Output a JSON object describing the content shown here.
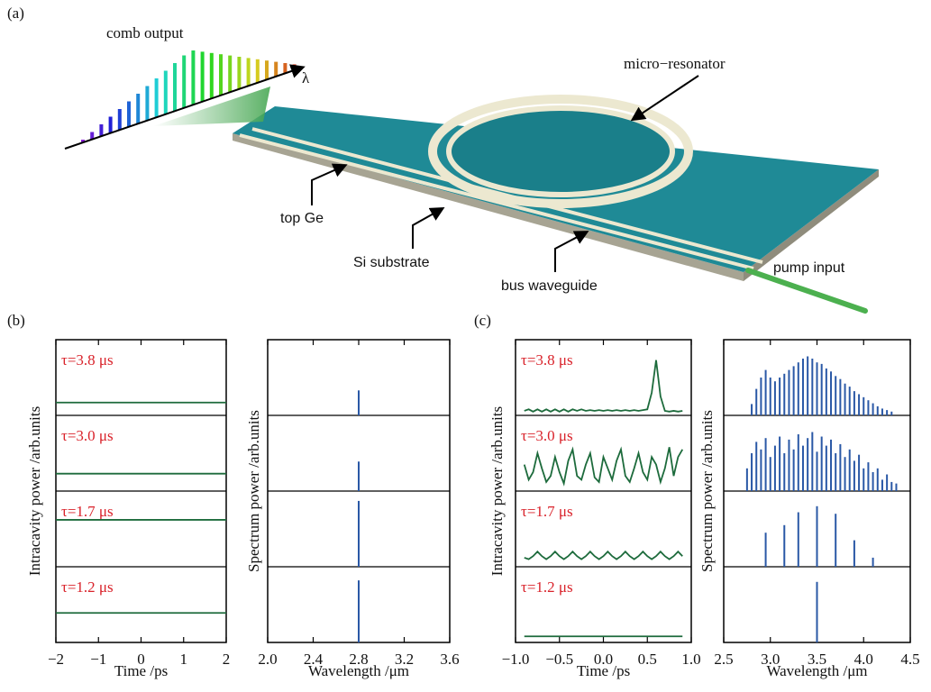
{
  "diagram": {
    "label": "(a)",
    "comb_output": "comb output",
    "lambda": "λ",
    "micro_resonator": "micro−resonator",
    "top_ge": "top Ge",
    "si_substrate": "Si substrate",
    "bus_waveguide": "bus waveguide",
    "pump_input": "pump input"
  },
  "chart_data": [
    {
      "type": "line",
      "label": "(b)",
      "xlabel": "Time /ps",
      "ylabel": "Intracavity power /arb.units",
      "color": "#1d6b3c",
      "xlim": [
        -2,
        2
      ],
      "xticks": [
        {
          "value": -2,
          "label": "−2"
        },
        {
          "value": -1,
          "label": "−1"
        },
        0,
        1,
        2
      ],
      "ylim": [
        0,
        1
      ],
      "x": [
        -2,
        2
      ],
      "panels": [
        {
          "annotation": "τ=3.8 μs",
          "values": [
            0.17,
            0.17
          ]
        },
        {
          "annotation": "τ=3.0 μs",
          "values": [
            0.23,
            0.23
          ]
        },
        {
          "annotation": "τ=1.7 μs",
          "values": [
            0.62,
            0.62
          ]
        },
        {
          "annotation": "τ=1.2 μs",
          "values": [
            0.39,
            0.39
          ]
        }
      ]
    },
    {
      "type": "stem",
      "xlabel": "Wavelength /μm",
      "ylabel": "Spectrum power /arb.units",
      "color": "#2a58a6",
      "xlim": [
        2.0,
        3.6
      ],
      "xticks": [
        {
          "value": 2,
          "label": "2.0"
        },
        2.4,
        2.8,
        3.2,
        3.6
      ],
      "ylim": [
        0,
        1
      ],
      "panels": [
        {
          "x": [
            2.8
          ],
          "values": [
            0.33
          ]
        },
        {
          "x": [
            2.8
          ],
          "values": [
            0.39
          ]
        },
        {
          "x": [
            2.8
          ],
          "values": [
            0.87
          ]
        },
        {
          "x": [
            2.8
          ],
          "values": [
            0.82
          ]
        }
      ]
    },
    {
      "type": "line",
      "label": "(c)",
      "xlabel": "Time /ps",
      "ylabel": "Intracavity power /arb.units",
      "color": "#1d6b3c",
      "xlim": [
        -1,
        1
      ],
      "xticks": [
        {
          "value": -1,
          "label": "−1.0"
        },
        {
          "value": -0.5,
          "label": "−0.5"
        },
        {
          "value": 0,
          "label": "0.0"
        },
        0.5,
        {
          "value": 1,
          "label": "1.0"
        }
      ],
      "ylim": [
        0,
        1
      ],
      "x": [
        -0.9,
        -0.85,
        -0.8,
        -0.75,
        -0.7,
        -0.65,
        -0.6,
        -0.55,
        -0.5,
        -0.45,
        -0.4,
        -0.35,
        -0.3,
        -0.25,
        -0.2,
        -0.15,
        -0.1,
        -0.05,
        0,
        0.05,
        0.1,
        0.15,
        0.2,
        0.25,
        0.3,
        0.35,
        0.4,
        0.45,
        0.5,
        0.55,
        0.6,
        0.65,
        0.7,
        0.75,
        0.8,
        0.85,
        0.9
      ],
      "panels": [
        {
          "annotation": "τ=3.8 μs",
          "values": [
            0.06,
            0.08,
            0.05,
            0.08,
            0.05,
            0.08,
            0.05,
            0.08,
            0.05,
            0.08,
            0.05,
            0.08,
            0.06,
            0.08,
            0.06,
            0.07,
            0.06,
            0.07,
            0.06,
            0.07,
            0.06,
            0.07,
            0.06,
            0.07,
            0.06,
            0.07,
            0.06,
            0.07,
            0.08,
            0.3,
            0.73,
            0.25,
            0.06,
            0.05,
            0.06,
            0.05,
            0.06
          ]
        },
        {
          "annotation": "τ=3.0 μs",
          "values": [
            0.35,
            0.15,
            0.25,
            0.5,
            0.3,
            0.12,
            0.2,
            0.45,
            0.25,
            0.1,
            0.4,
            0.55,
            0.2,
            0.15,
            0.35,
            0.5,
            0.18,
            0.12,
            0.45,
            0.3,
            0.15,
            0.4,
            0.55,
            0.2,
            0.12,
            0.3,
            0.5,
            0.25,
            0.15,
            0.45,
            0.35,
            0.12,
            0.3,
            0.58,
            0.2,
            0.45,
            0.55
          ]
        },
        {
          "annotation": "τ=1.7 μs",
          "values": [
            0.12,
            0.1,
            0.14,
            0.2,
            0.14,
            0.1,
            0.14,
            0.2,
            0.14,
            0.1,
            0.14,
            0.2,
            0.14,
            0.1,
            0.14,
            0.2,
            0.14,
            0.1,
            0.14,
            0.2,
            0.14,
            0.1,
            0.14,
            0.2,
            0.14,
            0.1,
            0.14,
            0.2,
            0.14,
            0.1,
            0.14,
            0.2,
            0.14,
            0.1,
            0.14,
            0.2,
            0.14
          ]
        },
        {
          "annotation": "τ=1.2 μs",
          "values": [
            0.08,
            0.08,
            0.08,
            0.08,
            0.08,
            0.08,
            0.08,
            0.08,
            0.08,
            0.08,
            0.08,
            0.08,
            0.08,
            0.08,
            0.08,
            0.08,
            0.08,
            0.08,
            0.08,
            0.08,
            0.08,
            0.08,
            0.08,
            0.08,
            0.08,
            0.08,
            0.08,
            0.08,
            0.08,
            0.08,
            0.08,
            0.08,
            0.08,
            0.08,
            0.08,
            0.08,
            0.08
          ]
        }
      ]
    },
    {
      "type": "stem",
      "xlabel": "Wavelength /μm",
      "ylabel": "Spectrum power /arb.units",
      "color": "#2a58a6",
      "xlim": [
        2.5,
        4.5
      ],
      "xticks": [
        2.5,
        {
          "value": 3,
          "label": "3.0"
        },
        3.5,
        {
          "value": 4,
          "label": "4.0"
        },
        4.5
      ],
      "ylim": [
        0,
        1
      ],
      "panels": [
        {
          "x": [
            2.8,
            2.85,
            2.9,
            2.95,
            3,
            3.05,
            3.1,
            3.15,
            3.2,
            3.25,
            3.3,
            3.35,
            3.4,
            3.45,
            3.5,
            3.55,
            3.6,
            3.65,
            3.7,
            3.75,
            3.8,
            3.85,
            3.9,
            3.95,
            4,
            4.05,
            4.1,
            4.15,
            4.2,
            4.25,
            4.3
          ],
          "values": [
            0.15,
            0.35,
            0.5,
            0.6,
            0.5,
            0.45,
            0.5,
            0.55,
            0.6,
            0.65,
            0.7,
            0.75,
            0.78,
            0.75,
            0.7,
            0.68,
            0.62,
            0.58,
            0.52,
            0.48,
            0.42,
            0.38,
            0.32,
            0.28,
            0.24,
            0.2,
            0.16,
            0.12,
            0.09,
            0.07,
            0.05
          ]
        },
        {
          "x": [
            2.75,
            2.8,
            2.85,
            2.9,
            2.95,
            3,
            3.05,
            3.1,
            3.15,
            3.2,
            3.25,
            3.3,
            3.35,
            3.4,
            3.45,
            3.5,
            3.55,
            3.6,
            3.65,
            3.7,
            3.75,
            3.8,
            3.85,
            3.9,
            3.95,
            4,
            4.05,
            4.1,
            4.15,
            4.2,
            4.25,
            4.3,
            4.35
          ],
          "values": [
            0.3,
            0.5,
            0.65,
            0.55,
            0.7,
            0.45,
            0.6,
            0.72,
            0.5,
            0.68,
            0.55,
            0.75,
            0.6,
            0.7,
            0.78,
            0.52,
            0.72,
            0.6,
            0.68,
            0.5,
            0.62,
            0.45,
            0.55,
            0.4,
            0.48,
            0.3,
            0.38,
            0.25,
            0.3,
            0.15,
            0.22,
            0.12,
            0.1
          ]
        },
        {
          "x": [
            2.95,
            3.15,
            3.3,
            3.5,
            3.7,
            3.9,
            4.1
          ],
          "values": [
            0.45,
            0.55,
            0.72,
            0.8,
            0.7,
            0.35,
            0.12
          ]
        },
        {
          "x": [
            3.5
          ],
          "values": [
            0.8
          ]
        }
      ]
    }
  ]
}
